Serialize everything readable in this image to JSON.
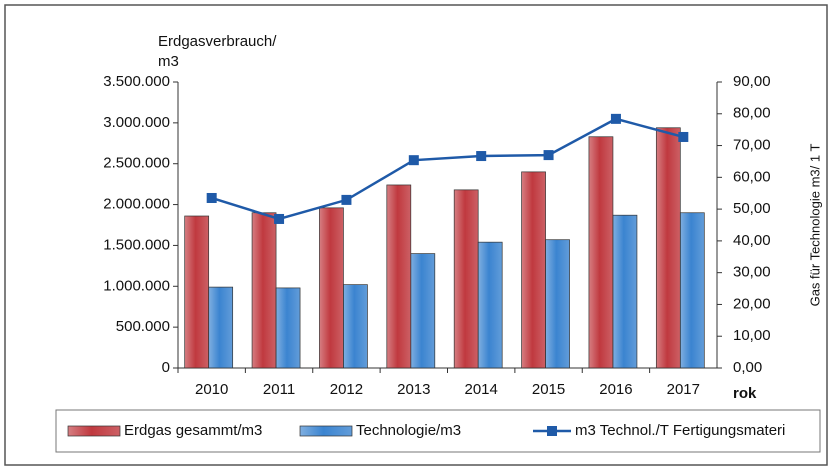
{
  "chart_data": {
    "type": "bar_line",
    "y_label": [
      "Erdgasverbrauch/",
      "m3"
    ],
    "y2_label": "Gas für Technologie m3/ 1 T",
    "x_label": "rok",
    "categories": [
      "2010",
      "2011",
      "2012",
      "2013",
      "2014",
      "2015",
      "2016",
      "2017"
    ],
    "series": [
      {
        "name": "Erdgas gesammt/m3",
        "color": "#c0393f",
        "type": "bar",
        "values": [
          1860000,
          1900000,
          1960000,
          2240000,
          2180000,
          2400000,
          2830000,
          2940000
        ]
      },
      {
        "name": "Technologie/m3",
        "color": "#3b84d0",
        "type": "bar",
        "values": [
          990000,
          980000,
          1020000,
          1400000,
          1540000,
          1570000,
          1870000,
          1900000
        ]
      },
      {
        "name": "m3 Technol./T Fertigungsmateri",
        "color": "#1f5aa8",
        "type": "line",
        "axis": "y2",
        "values": [
          53.5,
          46.9,
          52.9,
          65.4,
          66.7,
          67.0,
          78.4,
          72.7
        ]
      }
    ],
    "ylim": [
      0,
      3500000
    ],
    "yticks": [
      0,
      {
        "value": 500000,
        "label": "500.000"
      },
      {
        "value": 1000000,
        "label": "1.000.000"
      },
      {
        "value": 1500000,
        "label": "1.500.000"
      },
      {
        "value": 2000000,
        "label": "2.000.000"
      },
      {
        "value": 2500000,
        "label": "2.500.000"
      },
      {
        "value": 3000000,
        "label": "3.000.000"
      },
      {
        "value": 3500000,
        "label": "3.500.000"
      }
    ],
    "y2lim": [
      0,
      90
    ],
    "y2ticks": [
      {
        "value": 0,
        "label": "0,00"
      },
      {
        "value": 10,
        "label": "10,00"
      },
      {
        "value": 20,
        "label": "20,00"
      },
      {
        "value": 30,
        "label": "30,00"
      },
      {
        "value": 40,
        "label": "40,00"
      },
      {
        "value": 50,
        "label": "50,00"
      },
      {
        "value": 60,
        "label": "60,00"
      },
      {
        "value": 70,
        "label": "70,00"
      },
      {
        "value": 80,
        "label": "80,00"
      },
      {
        "value": 90,
        "label": "90,00"
      }
    ]
  }
}
